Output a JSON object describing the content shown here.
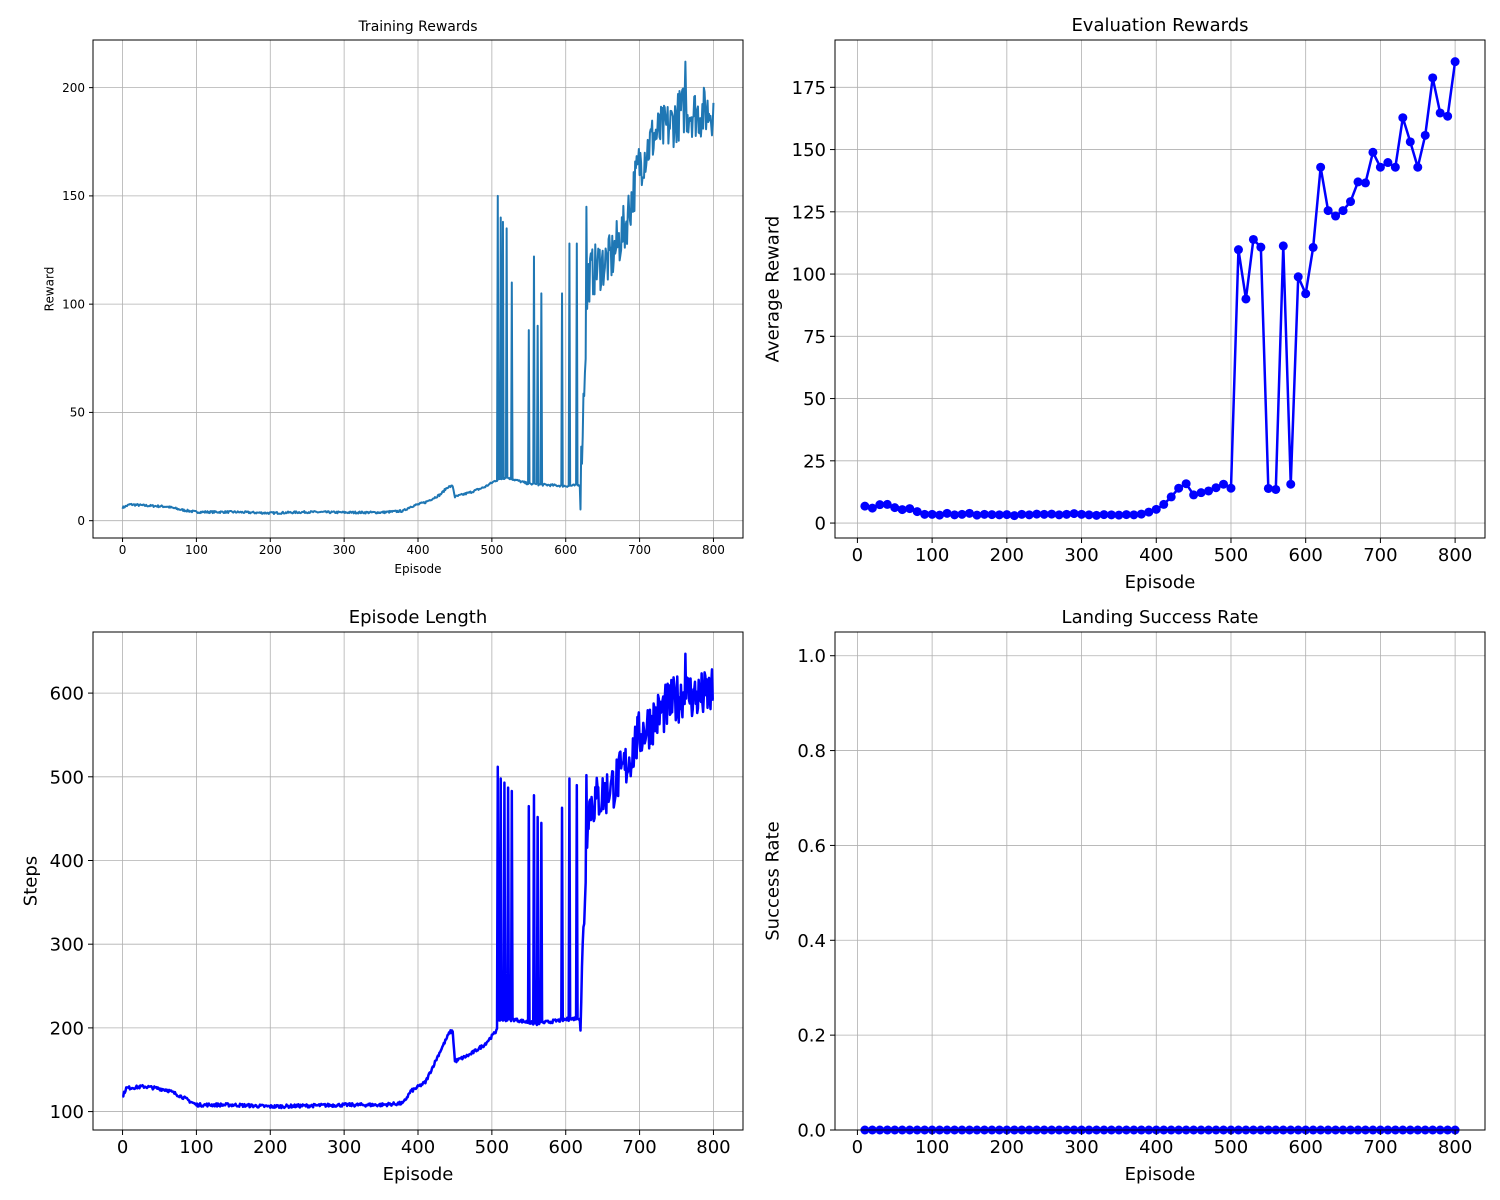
{
  "chart_data": [
    {
      "type": "line",
      "title": "Training Rewards",
      "xlabel": "Episode",
      "ylabel": "Reward",
      "xlim": [
        -40,
        840
      ],
      "ylim": [
        -8,
        222
      ],
      "xticks": [
        0,
        100,
        200,
        300,
        400,
        500,
        600,
        700,
        800
      ],
      "yticks": [
        0,
        50,
        100,
        150,
        200
      ],
      "grid": true,
      "series": [
        {
          "color": "#1f77b4",
          "x_start": 0,
          "x_step": 1,
          "segments": [
            [
              0,
              6.0
            ],
            [
              10,
              7.5
            ],
            [
              30,
              7.0
            ],
            [
              60,
              6.5
            ],
            [
              80,
              5.0
            ],
            [
              100,
              4.0
            ],
            [
              150,
              4.0
            ],
            [
              200,
              3.5
            ],
            [
              250,
              4.0
            ],
            [
              300,
              3.8
            ],
            [
              350,
              3.8
            ],
            [
              380,
              4.5
            ],
            [
              390,
              6.5
            ],
            [
              410,
              8.5
            ],
            [
              430,
              12.0
            ],
            [
              440,
              15.5
            ],
            [
              447,
              16.0
            ],
            [
              450,
              11.0
            ],
            [
              470,
              13.0
            ],
            [
              490,
              15.5
            ],
            [
              505,
              18.5
            ],
            [
              520,
              20.0
            ],
            [
              550,
              17.0
            ],
            [
              600,
              16.0
            ],
            [
              620,
              16.5
            ],
            [
              630,
              112
            ],
            [
              645,
              118
            ],
            [
              660,
              120
            ],
            [
              680,
              135
            ],
            [
              700,
              165
            ],
            [
              720,
              178
            ],
            [
              740,
              182
            ],
            [
              760,
              190
            ],
            [
              780,
              188
            ],
            [
              800,
              190
            ]
          ],
          "spikes": [
            [
              508,
              150
            ],
            [
              512,
              140
            ],
            [
              515,
              138
            ],
            [
              520,
              135
            ],
            [
              527,
              110
            ],
            [
              550,
              88
            ],
            [
              557,
              122
            ],
            [
              562,
              90
            ],
            [
              567,
              105
            ],
            [
              595,
              105
            ],
            [
              605,
              128
            ],
            [
              615,
              128
            ],
            [
              628,
              145
            ],
            [
              660,
              125
            ],
            [
              675,
              125
            ]
          ],
          "noise_after": 620,
          "noise_amp": 12,
          "peak": [
            762,
            212
          ]
        }
      ]
    },
    {
      "type": "line",
      "title": "Evaluation Rewards",
      "xlabel": "Episode",
      "ylabel": "Average Reward",
      "xlim": [
        -30,
        840
      ],
      "ylim": [
        -6,
        194
      ],
      "xticks": [
        0,
        100,
        200,
        300,
        400,
        500,
        600,
        700,
        800
      ],
      "yticks": [
        0,
        25,
        50,
        75,
        100,
        125,
        150,
        175
      ],
      "grid": true,
      "series": [
        {
          "color": "#0000ff",
          "marker": "circle",
          "x": [
            10,
            20,
            30,
            40,
            50,
            60,
            70,
            80,
            90,
            100,
            110,
            120,
            130,
            140,
            150,
            160,
            170,
            180,
            190,
            200,
            210,
            220,
            230,
            240,
            250,
            260,
            270,
            280,
            290,
            300,
            310,
            320,
            330,
            340,
            350,
            360,
            370,
            380,
            390,
            400,
            410,
            420,
            430,
            440,
            450,
            460,
            470,
            480,
            490,
            500,
            510,
            520,
            530,
            540,
            550,
            560,
            570,
            580,
            590,
            600,
            610,
            620,
            630,
            640,
            650,
            660,
            670,
            680,
            690,
            700,
            710,
            720,
            730,
            740,
            750,
            760,
            770,
            780,
            790,
            800
          ],
          "y": [
            6.8,
            6.0,
            7.4,
            7.5,
            6.2,
            5.4,
            5.8,
            4.6,
            3.5,
            3.5,
            3.2,
            3.9,
            3.3,
            3.5,
            3.9,
            3.2,
            3.5,
            3.4,
            3.3,
            3.4,
            3.0,
            3.5,
            3.3,
            3.6,
            3.5,
            3.6,
            3.3,
            3.5,
            3.8,
            3.5,
            3.3,
            3.1,
            3.4,
            3.3,
            3.2,
            3.4,
            3.3,
            3.6,
            4.4,
            5.5,
            7.5,
            10.5,
            14.0,
            15.8,
            11.3,
            12.2,
            12.9,
            14.2,
            15.6,
            14.0,
            109.8,
            90.0,
            113.9,
            110.8,
            13.9,
            13.5,
            111.3,
            15.6,
            98.9,
            92.1,
            110.7,
            142.9,
            125.5,
            123.3,
            125.5,
            129.1,
            137.0,
            136.6,
            148.9,
            142.9,
            144.8,
            142.9,
            162.8,
            153.1,
            142.9,
            155.7,
            178.8,
            164.7,
            163.4,
            185.3
          ]
        }
      ]
    },
    {
      "type": "line",
      "title": "Episode Length",
      "xlabel": "Episode",
      "ylabel": "Steps",
      "xlim": [
        -40,
        840
      ],
      "ylim": [
        78,
        673
      ],
      "xticks": [
        0,
        100,
        200,
        300,
        400,
        500,
        600,
        700,
        800
      ],
      "yticks": [
        100,
        200,
        300,
        400,
        500,
        600
      ],
      "grid": true,
      "series": [
        {
          "color": "#0000ff",
          "x_start": 0,
          "x_step": 1,
          "segments": [
            [
              0,
              118
            ],
            [
              5,
              128
            ],
            [
              30,
              130
            ],
            [
              60,
              126
            ],
            [
              80,
              118
            ],
            [
              100,
              108
            ],
            [
              150,
              108
            ],
            [
              200,
              106
            ],
            [
              250,
              107
            ],
            [
              300,
              108
            ],
            [
              350,
              108
            ],
            [
              380,
              110
            ],
            [
              390,
              124
            ],
            [
              410,
              135
            ],
            [
              430,
              172
            ],
            [
              443,
              195
            ],
            [
              447,
              196
            ],
            [
              450,
              160
            ],
            [
              470,
              168
            ],
            [
              490,
              180
            ],
            [
              505,
              195
            ],
            [
              510,
              210
            ],
            [
              530,
              210
            ],
            [
              560,
              205
            ],
            [
              600,
              210
            ],
            [
              620,
              212
            ],
            [
              630,
              465
            ],
            [
              645,
              475
            ],
            [
              660,
              485
            ],
            [
              680,
              510
            ],
            [
              700,
              550
            ],
            [
              720,
              570
            ],
            [
              740,
              585
            ],
            [
              760,
              600
            ],
            [
              780,
              595
            ],
            [
              800,
              600
            ]
          ],
          "spikes": [
            [
              508,
              512
            ],
            [
              512,
              498
            ],
            [
              517,
              493
            ],
            [
              522,
              487
            ],
            [
              527,
              483
            ],
            [
              550,
              465
            ],
            [
              557,
              478
            ],
            [
              562,
              452
            ],
            [
              567,
              445
            ],
            [
              595,
              463
            ],
            [
              605,
              498
            ],
            [
              615,
              490
            ],
            [
              628,
              502
            ],
            [
              660,
              480
            ],
            [
              675,
              510
            ]
          ],
          "noise_after": 620,
          "noise_amp": 30,
          "peak": [
            762,
            647
          ]
        }
      ]
    },
    {
      "type": "line",
      "title": "Landing Success Rate",
      "xlabel": "Episode",
      "ylabel": "Success Rate",
      "xlim": [
        -30,
        840
      ],
      "ylim": [
        0,
        1.05
      ],
      "xticks": [
        0,
        100,
        200,
        300,
        400,
        500,
        600,
        700,
        800
      ],
      "yticks": [
        0.0,
        0.2,
        0.4,
        0.6,
        0.8,
        1.0
      ],
      "ytick_labels": [
        "0.0",
        "0.2",
        "0.4",
        "0.6",
        "0.8",
        "1.0"
      ],
      "grid": true,
      "series": [
        {
          "color": "#0000ff",
          "marker": "circle",
          "x_range": [
            10,
            800,
            10
          ],
          "y_const": 0.0
        }
      ]
    }
  ]
}
